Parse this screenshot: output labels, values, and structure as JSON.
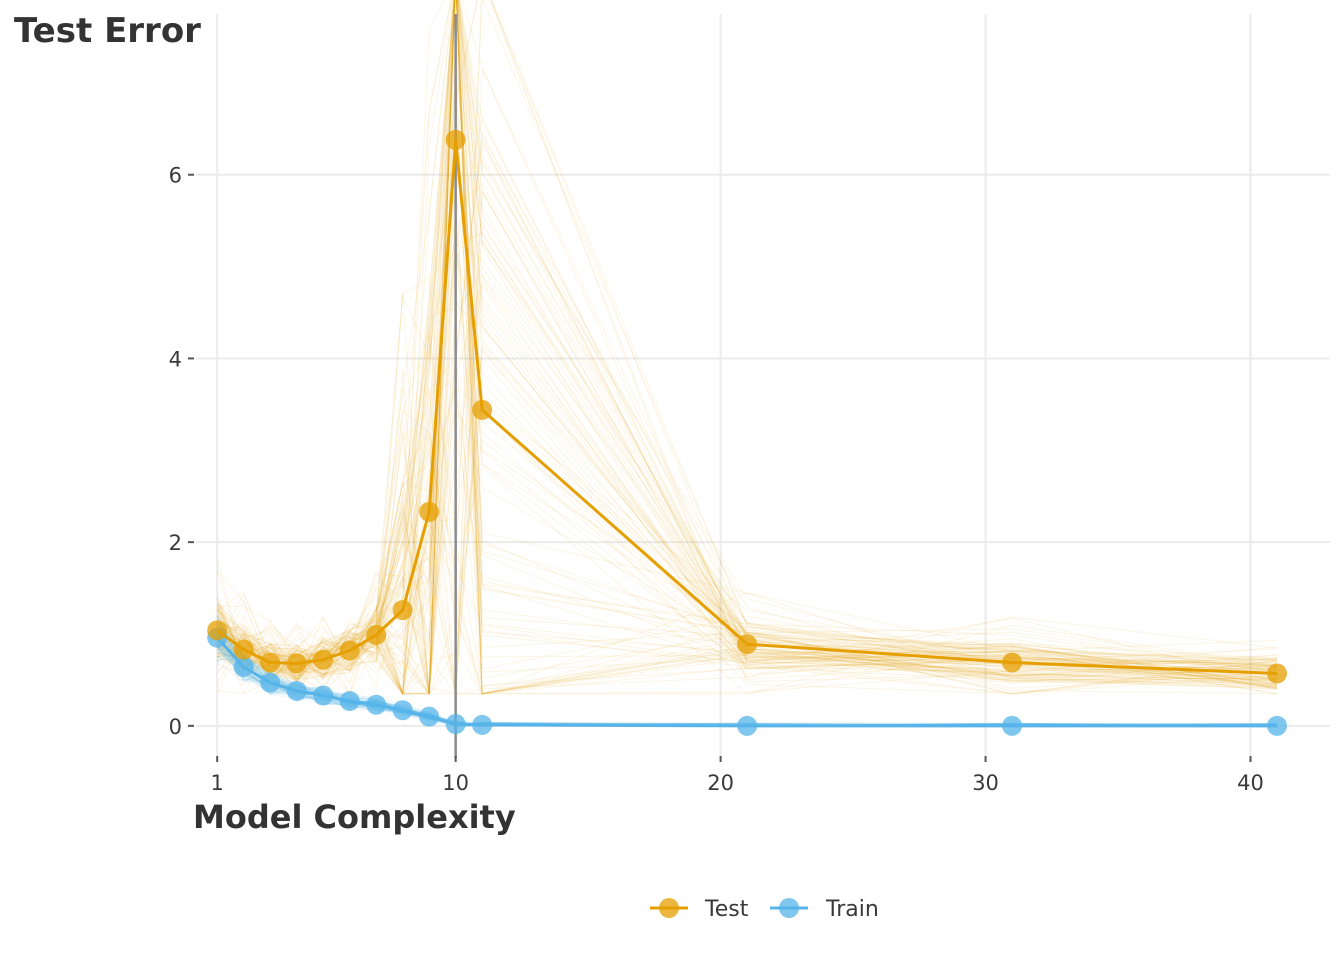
{
  "chart_data": {
    "type": "line",
    "title": "",
    "ylabel": "Test Error",
    "xlabel": "Model Complexity",
    "xlim": [
      0.2,
      43
    ],
    "ylim": [
      -0.35,
      7.75
    ],
    "x_ticks": [
      1,
      10,
      20,
      30,
      40
    ],
    "x_tick_labels": [
      "1",
      "10",
      "20",
      "30",
      "40"
    ],
    "y_ticks": [
      0,
      2,
      4,
      6
    ],
    "y_tick_labels": [
      "0",
      "2",
      "4",
      "6"
    ],
    "grid": true,
    "vline_x": 10,
    "legend_position": "bottom",
    "x": [
      1,
      2,
      3,
      4,
      5,
      6,
      7,
      8,
      9,
      10,
      11,
      21,
      31,
      41
    ],
    "series": [
      {
        "name": "Test",
        "color": "#E69F00",
        "values": [
          1.04,
          0.83,
          0.69,
          0.68,
          0.72,
          0.82,
          0.99,
          1.26,
          2.33,
          6.38,
          3.44,
          0.89,
          0.69,
          0.57
        ]
      },
      {
        "name": "Train",
        "color": "#56B4E9",
        "values": [
          0.96,
          0.64,
          0.47,
          0.38,
          0.33,
          0.27,
          0.23,
          0.17,
          0.1,
          0.02,
          0.01,
          0.0,
          0.0,
          0.0
        ]
      }
    ]
  }
}
